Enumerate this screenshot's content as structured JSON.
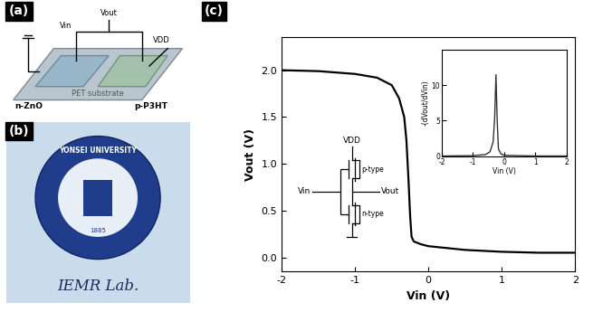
{
  "panels": [
    {
      "label": "(a)",
      "type": "diagram",
      "texts": {
        "input": "Vin",
        "output": "Vout",
        "supply": "VDD",
        "substrate": "PET substrate",
        "n_channel": "n-ZnO",
        "p_channel": "p-P3HT"
      }
    },
    {
      "label": "(b)",
      "type": "photo",
      "texts": {
        "logo": "YONSEI UNIVERSITY",
        "year": "1885",
        "caption": "IEMR Lab."
      }
    }
  ],
  "chart_data": {
    "label": "(c)",
    "type": "line",
    "x_label": "Vin (V)",
    "y_label": "Vout (V)",
    "x": [
      -2.0,
      -1.5,
      -1.0,
      -0.7,
      -0.5,
      -0.4,
      -0.33,
      -0.3,
      -0.27,
      -0.25,
      -0.23,
      -0.2,
      -0.1,
      0.0,
      0.5,
      1.0,
      1.5,
      2.0
    ],
    "values": [
      2.0,
      1.99,
      1.96,
      1.92,
      1.84,
      1.7,
      1.5,
      1.25,
      0.8,
      0.45,
      0.22,
      0.17,
      0.14,
      0.12,
      0.08,
      0.06,
      0.05,
      0.05
    ],
    "color": "#000000",
    "xlim": [
      -2,
      2
    ],
    "ylim": [
      -0.15,
      2.35
    ],
    "xticks": [
      -2,
      -1,
      0,
      1,
      2
    ],
    "yticks": [
      {
        "value": 0,
        "label": "0.0"
      },
      {
        "value": 0.5,
        "label": "0.5"
      },
      {
        "value": 1.0,
        "label": "1.0"
      },
      {
        "value": 1.5,
        "label": "1.5"
      },
      {
        "value": 2.0,
        "label": "2.0"
      }
    ],
    "grid": false,
    "circuit": {
      "supply": "VDD",
      "input": "Vin",
      "output": "Vout",
      "upper": "p-type",
      "lower": "n-type"
    },
    "inset": {
      "type": "line",
      "x_label": "Vin (V)",
      "y_label": "-(dVout/dVin)",
      "x": [
        -2.0,
        -1.0,
        -0.6,
        -0.45,
        -0.35,
        -0.3,
        -0.26,
        -0.22,
        -0.18,
        -0.1,
        0.0,
        1.0,
        2.0
      ],
      "values": [
        0.0,
        0.05,
        0.2,
        0.6,
        2.0,
        5.5,
        11.5,
        5.0,
        1.0,
        0.3,
        0.1,
        0.0,
        0.0
      ],
      "color": "#333333",
      "xlim": [
        -2,
        2
      ],
      "ylim": [
        0,
        15
      ],
      "xticks": [
        -2,
        -1,
        0,
        1,
        2
      ],
      "yticks": [
        0,
        5,
        10
      ]
    }
  }
}
